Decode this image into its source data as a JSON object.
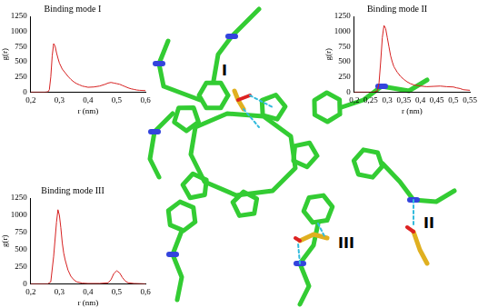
{
  "chart_data": [
    {
      "type": "line",
      "title": "Binding mode I",
      "x_label": "r (nm)",
      "y_label": "g(r)",
      "color": "#d62020",
      "grid": false,
      "x": [
        0.2,
        0.25,
        0.26,
        0.265,
        0.27,
        0.275,
        0.28,
        0.285,
        0.29,
        0.295,
        0.3,
        0.31,
        0.32,
        0.33,
        0.34,
        0.35,
        0.36,
        0.37,
        0.38,
        0.39,
        0.4,
        0.42,
        0.44,
        0.46,
        0.47,
        0.48,
        0.49,
        0.5,
        0.51,
        0.52,
        0.53,
        0.54,
        0.55,
        0.56,
        0.57,
        0.58,
        0.6
      ],
      "values": [
        0,
        0,
        5,
        40,
        250,
        600,
        800,
        760,
        650,
        560,
        480,
        380,
        320,
        260,
        210,
        170,
        140,
        120,
        100,
        90,
        80,
        85,
        100,
        130,
        150,
        160,
        150,
        140,
        130,
        110,
        90,
        70,
        55,
        45,
        35,
        30,
        25
      ],
      "xlim": [
        0.2,
        0.6
      ],
      "xticks": [
        {
          "value": 0.2,
          "label": "0,2"
        },
        {
          "value": 0.3,
          "label": "0,3"
        },
        {
          "value": 0.4,
          "label": "0,4"
        },
        {
          "value": 0.5,
          "label": "0,5"
        },
        {
          "value": 0.6,
          "label": "0,6"
        }
      ],
      "ylim": [
        0,
        1250
      ],
      "yticks": [
        0,
        250,
        500,
        750,
        1000,
        1250
      ]
    },
    {
      "type": "line",
      "title": "Binding mode II",
      "x_label": "r (nm)",
      "y_label": "g(r)",
      "color": "#d62020",
      "grid": false,
      "x": [
        0.2,
        0.26,
        0.27,
        0.275,
        0.28,
        0.285,
        0.29,
        0.295,
        0.3,
        0.305,
        0.31,
        0.315,
        0.32,
        0.33,
        0.34,
        0.35,
        0.36,
        0.37,
        0.38,
        0.39,
        0.4,
        0.42,
        0.44,
        0.46,
        0.48,
        0.5,
        0.51,
        0.52,
        0.53,
        0.55
      ],
      "values": [
        0,
        0,
        20,
        150,
        500,
        900,
        1100,
        1050,
        900,
        750,
        600,
        500,
        420,
        330,
        260,
        210,
        170,
        140,
        120,
        110,
        100,
        90,
        95,
        100,
        90,
        85,
        70,
        60,
        40,
        30
      ],
      "xlim": [
        0.2,
        0.55
      ],
      "xticks": [
        {
          "value": 0.2,
          "label": "0,2"
        },
        {
          "value": 0.25,
          "label": "0,25"
        },
        {
          "value": 0.3,
          "label": "0,3"
        },
        {
          "value": 0.35,
          "label": "0,35"
        },
        {
          "value": 0.4,
          "label": "0,4"
        },
        {
          "value": 0.45,
          "label": "0,45"
        },
        {
          "value": 0.5,
          "label": "0,5"
        },
        {
          "value": 0.55,
          "label": "0,55"
        }
      ],
      "ylim": [
        0,
        1250
      ],
      "yticks": [
        0,
        250,
        500,
        750,
        1000,
        1250
      ]
    },
    {
      "type": "line",
      "title": "Binding mode III",
      "x_label": "r (nm)",
      "y_label": "g(r)",
      "color": "#d62020",
      "grid": false,
      "x": [
        0.2,
        0.26,
        0.27,
        0.28,
        0.29,
        0.295,
        0.3,
        0.305,
        0.31,
        0.315,
        0.32,
        0.33,
        0.34,
        0.35,
        0.36,
        0.38,
        0.4,
        0.44,
        0.47,
        0.48,
        0.49,
        0.5,
        0.51,
        0.52,
        0.53,
        0.54,
        0.56,
        0.6
      ],
      "values": [
        0,
        0,
        30,
        400,
        900,
        1080,
        1000,
        820,
        600,
        450,
        350,
        200,
        110,
        60,
        30,
        10,
        5,
        5,
        15,
        60,
        150,
        190,
        160,
        90,
        40,
        15,
        5,
        0
      ],
      "xlim": [
        0.2,
        0.6
      ],
      "xticks": [
        {
          "value": 0.2,
          "label": "0,2"
        },
        {
          "value": 0.3,
          "label": "0,3"
        },
        {
          "value": 0.4,
          "label": "0,4"
        },
        {
          "value": 0.5,
          "label": "0,5"
        },
        {
          "value": 0.6,
          "label": "0,6"
        }
      ],
      "ylim": [
        0,
        1250
      ],
      "yticks": [
        0,
        250,
        500,
        750,
        1000,
        1250
      ]
    }
  ],
  "structure": {
    "labels": [
      "I",
      "II",
      "III"
    ]
  }
}
